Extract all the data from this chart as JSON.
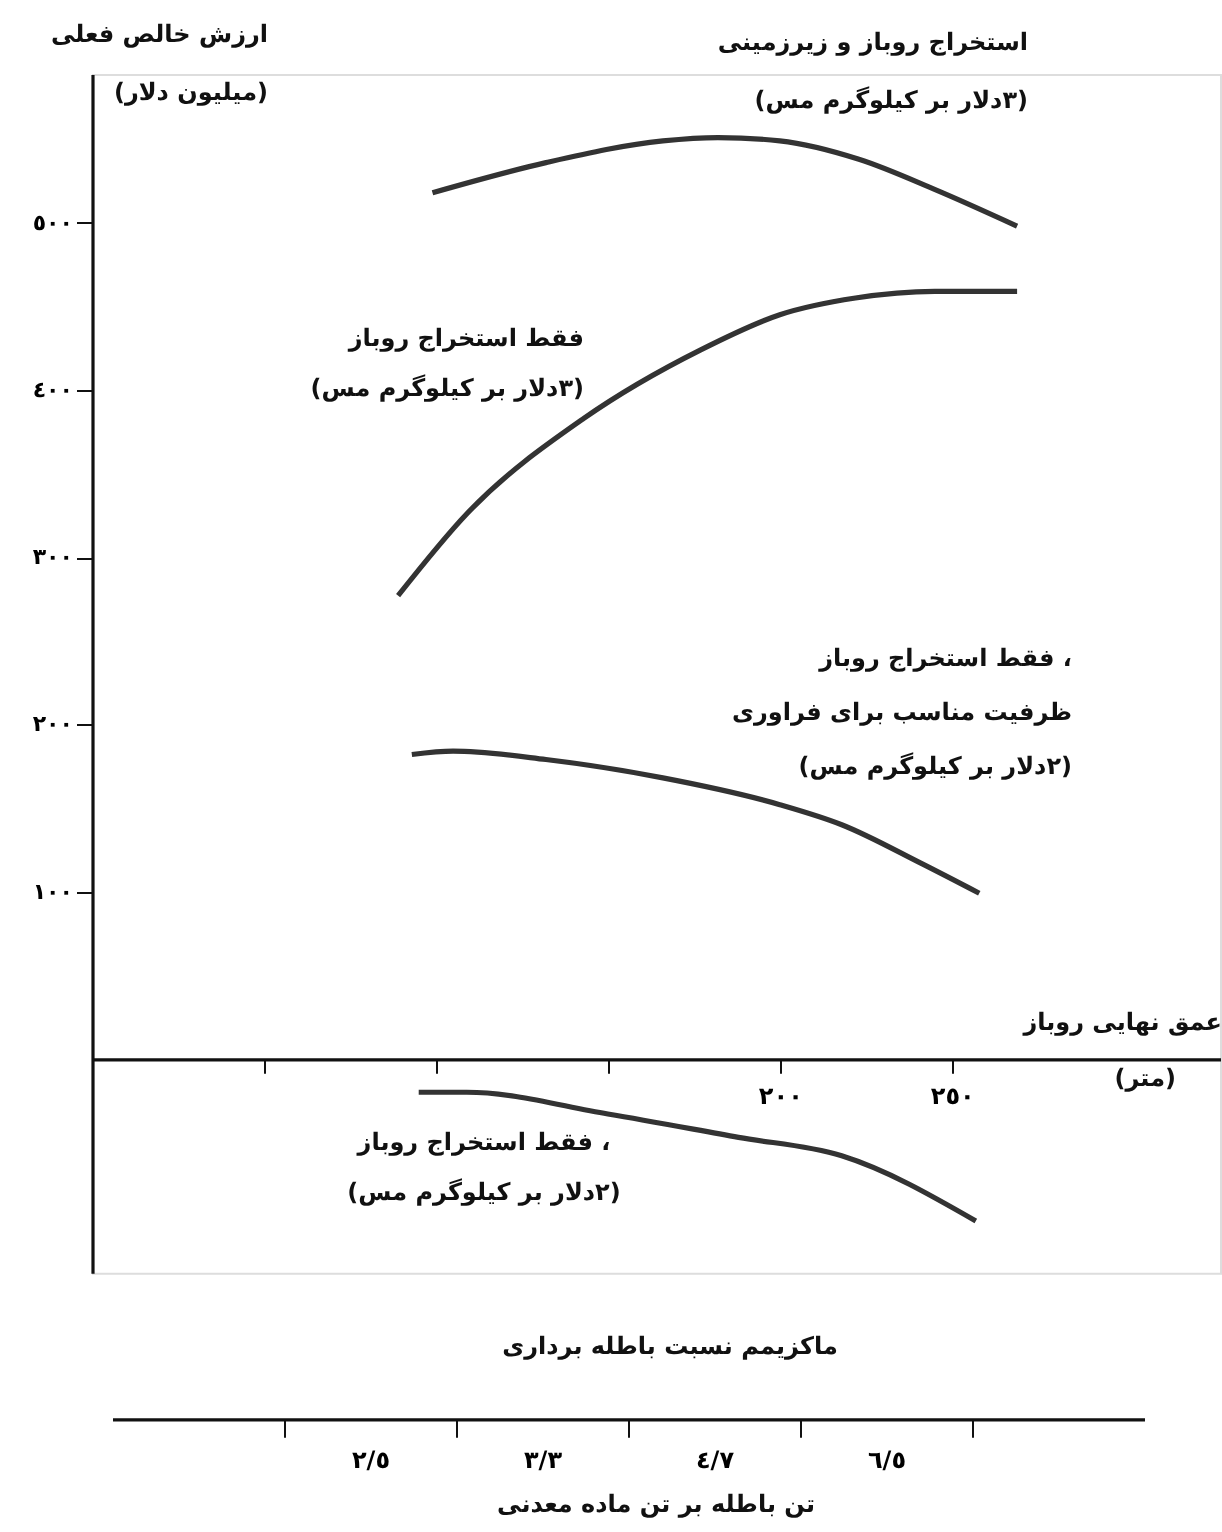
{
  "chart_data": {
    "type": "line",
    "ylabel": "ارزش خالص فعلی\n(میلیون دلار)",
    "xlabel": "عمق نهایی روباز\n(متر)",
    "x2label": "ماکزیمم نسبت باطله برداری",
    "xlim": [
      0,
      328
    ],
    "ylim": [
      -128,
      589
    ],
    "xticks": [
      {
        "value": 50,
        "label": null
      },
      {
        "value": 100,
        "label": null
      },
      {
        "value": 150,
        "label": null
      },
      {
        "value": 200,
        "label": "٢٠٠"
      },
      {
        "value": 250,
        "label": "٢٥٠"
      }
    ],
    "yticks": [
      {
        "value": 100,
        "label": "١٠٠"
      },
      {
        "value": 200,
        "label": "٢٠٠"
      },
      {
        "value": 300,
        "label": "٣٠٠"
      },
      {
        "value": 400,
        "label": "٤٠٠"
      },
      {
        "value": 500,
        "label": "٥٠٠"
      }
    ],
    "grid": false,
    "legend": false,
    "marker": "none",
    "line_style": "solid",
    "series": [
      {
        "color": "#333333",
        "x": [
          99,
          132,
          166,
          182,
          200,
          223,
          245,
          269
        ],
        "values": [
          518,
          536,
          549,
          551,
          549,
          538,
          520,
          498
        ]
      },
      {
        "color": "#333333",
        "x": [
          89,
          109,
          143,
          177,
          200,
          222,
          245,
          269
        ],
        "values": [
          277,
          326,
          383,
          424,
          445,
          455,
          459,
          459
        ]
      },
      {
        "color": "#333333",
        "x": [
          93,
          105,
          132,
          166,
          200,
          218,
          241,
          258
        ],
        "values": [
          182,
          184,
          179,
          168,
          152,
          140,
          117,
          99
        ]
      },
      {
        "color": "#333333",
        "x": [
          95,
          109,
          150,
          188,
          218,
          257
        ],
        "values": [
          -20,
          -20,
          -33,
          -47,
          -58,
          -97
        ]
      }
    ],
    "annotations": [
      "استخراج روباز و زیرزمینی\n(٣دلار بر کیلوگرم مس)",
      "فقط استخراج روباز\n(٣دلار بر کیلوگرم مس)",
      "فقط استخراج روباز ،\nظرفیت مناسب برای فراوری\n(٢دلار بر کیلوگرم مس)",
      "فقط استخراج روباز ،\n(٢دلار بر کیلوگرم مس)",
      "٢/٥",
      "٣/٣",
      "٤/٧",
      "٦/٥",
      "تن باطله بر تن ماده معدنی"
    ]
  }
}
